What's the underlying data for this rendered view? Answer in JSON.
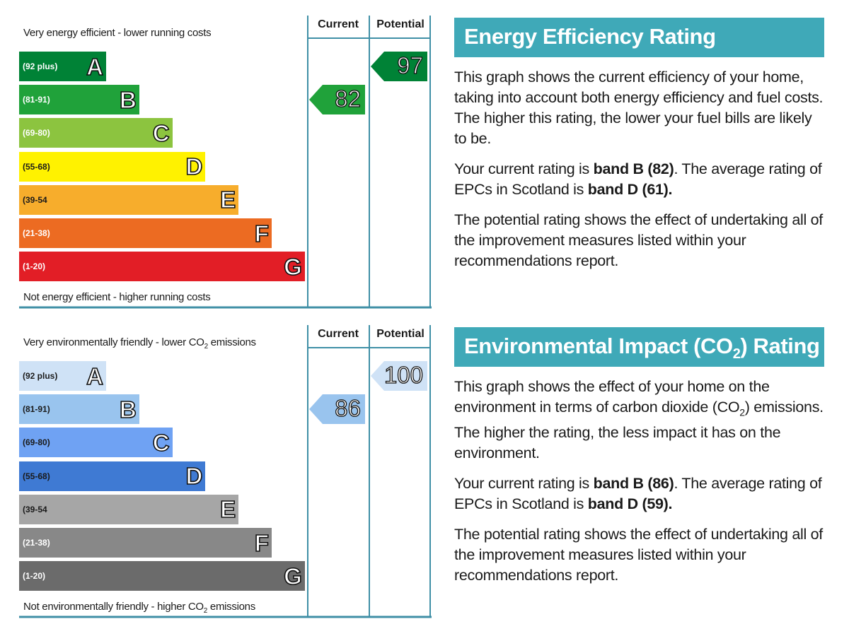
{
  "chart_data": [
    {
      "type": "bar",
      "categories": [
        "A",
        "B",
        "C",
        "D",
        "E",
        "F",
        "G"
      ],
      "ranges": [
        "(92 plus)",
        "(81-91)",
        "(69-80)",
        "(55-68)",
        "(39-54",
        "(21-38)",
        "(1-20)"
      ],
      "colors": [
        "#008236",
        "#20a23a",
        "#8cc43f",
        "#fff200",
        "#f7ad2c",
        "#ec6b22",
        "#e21e26"
      ],
      "top_label": "Very energy efficient - lower running costs",
      "bottom_label": "Not energy efficient - higher running costs",
      "columns": [
        "Current",
        "Potential"
      ],
      "current": {
        "value": 82,
        "band": "B",
        "color": "#20a23a"
      },
      "potential": {
        "value": 97,
        "band": "A",
        "color": "#008236"
      }
    },
    {
      "type": "bar",
      "categories": [
        "A",
        "B",
        "C",
        "D",
        "E",
        "F",
        "G"
      ],
      "ranges": [
        "(92 plus)",
        "(81-91)",
        "(69-80)",
        "(55-68)",
        "(39-54",
        "(21-38)",
        "(1-20)"
      ],
      "colors": [
        "#cfe2f6",
        "#99c4ee",
        "#6fa2f3",
        "#3f7ad3",
        "#a6a6a6",
        "#888888",
        "#6b6b6b"
      ],
      "range_text_colors": [
        "#1a1a1a",
        "#1a1a1a",
        "#1a1a1a",
        "#1a1a1a",
        "#1a1a1a",
        "#ffffff",
        "#ffffff"
      ],
      "top_label_parts": [
        "Very environmentally friendly - lower CO",
        "2",
        " emissions"
      ],
      "bottom_label_parts": [
        "Not environmentally friendly - higher CO",
        "2",
        " emissions"
      ],
      "columns": [
        "Current",
        "Potential"
      ],
      "current": {
        "value": 86,
        "band": "B",
        "color": "#99c4ee"
      },
      "potential": {
        "value": 100,
        "band": "A",
        "color": "#cfe2f6"
      }
    }
  ],
  "energy_panel": {
    "title": "Energy Efficiency Rating",
    "p1": "This graph shows the current efficiency of your home, taking into account both energy efficiency and fuel costs. The higher this rating, the lower your fuel bills are likely to be.",
    "p2_a": "Your current rating is ",
    "p2_b": "band B (82)",
    "p2_c": ". The average rating of EPCs in Scotland is ",
    "p2_d": "band D (61).",
    "p3": "The potential rating shows the effect of undertaking all of the improvement measures listed within your recommendations report."
  },
  "env_panel": {
    "title_a": "Environmental Impact (CO",
    "title_sub": "2",
    "title_b": ") Rating",
    "p1_a": "This graph shows the effect of your home on the environment in terms of carbon dioxide (CO",
    "p1_sub": "2",
    "p1_b": ") emissions. The higher the rating, the less impact it has on the environment.",
    "p2_a": "Your current rating is ",
    "p2_b": "band B (86)",
    "p2_c": ". The average rating of EPCs in Scotland is ",
    "p2_d": "band D (59).",
    "p3": "The potential rating shows the effect of undertaking all of the improvement measures listed within your recommendations report."
  },
  "frame_color": "#3f8fa6"
}
